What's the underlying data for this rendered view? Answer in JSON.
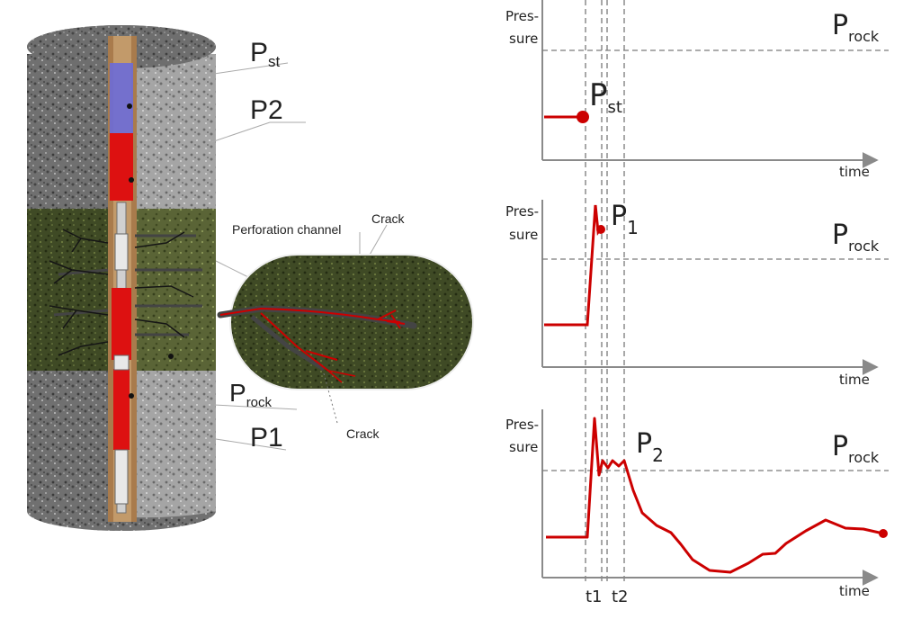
{
  "well": {
    "labels": {
      "p_st_main": "P",
      "p_st_sub": "st",
      "p2": "P2",
      "p_rock_main": "P",
      "p_rock_sub": "rock",
      "p1": "P1",
      "perforation": "Perforation channel",
      "crack_top": "Crack",
      "crack_bottom": "Crack"
    }
  },
  "graphs": {
    "pressure_word_1": "Pres-",
    "pressure_word_2": "sure",
    "time_label": "time",
    "p_rock_main": "P",
    "p_rock_sub": "rock",
    "t1": "t1",
    "t2": "t2",
    "panel1": {
      "marker_main": "P",
      "marker_sub": "st"
    },
    "panel2": {
      "marker_main": "P",
      "marker_sub": "1"
    },
    "panel3": {
      "marker_main": "P",
      "marker_sub": "2"
    }
  },
  "colors": {
    "curve": "#cc0000",
    "axis": "#8a8a8a",
    "dashed": "#7a7a7a",
    "rock_gray": "#6a6a6a",
    "rock_green": "#3e4a22",
    "casing": "#a87a4a",
    "tool_red": "#dd1111",
    "tool_blue": "#6a6ad8"
  }
}
